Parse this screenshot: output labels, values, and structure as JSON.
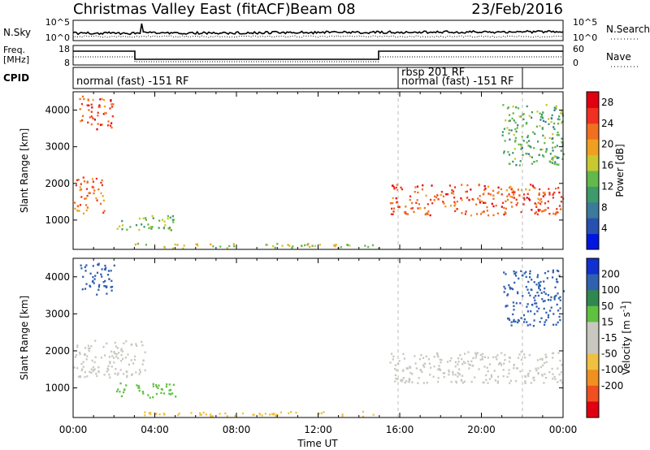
{
  "header": {
    "station": "Christmas Valley East (fitACF)",
    "beam": "Beam 08",
    "date": "23/Feb/2016"
  },
  "panels": {
    "nsky": {
      "label": "N.Sky",
      "ticks": [
        "10^5",
        "10^0"
      ],
      "right_label": "N.Search",
      "right_ticks": [
        "10^5",
        "10^0"
      ]
    },
    "freq": {
      "label": "Freq.",
      "unit": "[MHz]",
      "ticks": [
        "18",
        "8"
      ],
      "right_label": "Nave",
      "right_ticks": [
        "60",
        "0"
      ]
    },
    "cpid": {
      "label": "CPID",
      "modes": [
        {
          "text": "normal (fast) -151 RF",
          "start_h": 0
        },
        {
          "text": "rbsp 201 RF",
          "start_h": 16
        },
        {
          "text": "normal (fast) -151 RF",
          "start_h": 16
        }
      ]
    }
  },
  "time_axis": {
    "label": "Time UT",
    "ticks": [
      "00:00",
      "04:00",
      "08:00",
      "12:00",
      "16:00",
      "20:00",
      "00:00"
    ]
  },
  "chart_data": [
    {
      "type": "heatmap",
      "panel": "power",
      "xlabel": "Time UT",
      "ylabel": "Slant Range [km]",
      "xlim": [
        0,
        24
      ],
      "ylim": [
        200,
        4500
      ],
      "yticks": [
        "1000",
        "2000",
        "3000",
        "4000"
      ],
      "colorbar": {
        "label": "Power [dB]",
        "ticks": [
          "28",
          "24",
          "20",
          "16",
          "12",
          "8",
          "4"
        ],
        "colors": [
          "#0016e0",
          "#2850b0",
          "#3b7a9a",
          "#3e9a6a",
          "#62b84a",
          "#c8c830",
          "#f0a020",
          "#f07020",
          "#f03020",
          "#e00010"
        ]
      },
      "mode_change_times_h": [
        16,
        21.75
      ],
      "features": [
        {
          "name": "early high-range patch",
          "t": [
            0.3,
            2.0
          ],
          "range_km": [
            3500,
            4400
          ],
          "value": 24
        },
        {
          "name": "early mid-range streak",
          "t": [
            0.0,
            1.5
          ],
          "range_km": [
            1200,
            2200
          ],
          "value": 22
        },
        {
          "name": "morning echo",
          "t": [
            2.0,
            5.0
          ],
          "range_km": [
            750,
            1150
          ],
          "value": 14
        },
        {
          "name": "near ground scatter",
          "t": [
            3.0,
            15.0
          ],
          "range_km": [
            250,
            380
          ],
          "value": 16
        },
        {
          "name": "evening band",
          "t": [
            15.5,
            24.0
          ],
          "range_km": [
            1150,
            2000
          ],
          "value": 24
        },
        {
          "name": "late high-range echo",
          "t": [
            21.0,
            24.0
          ],
          "range_km": [
            2500,
            4200
          ],
          "value": 12
        }
      ]
    },
    {
      "type": "heatmap",
      "panel": "velocity",
      "xlabel": "Time UT",
      "ylabel": "Slant Range [km]",
      "xlim": [
        0,
        24
      ],
      "ylim": [
        200,
        4500
      ],
      "yticks": [
        "1000",
        "2000",
        "3000",
        "4000"
      ],
      "colorbar": {
        "label": "Velocity [m s^-1]",
        "ticks": [
          "200",
          "100",
          "50",
          "15",
          "-15",
          "-50",
          "-100",
          "-200"
        ],
        "colors": [
          "#1030d0",
          "#3060b0",
          "#308850",
          "#60c040",
          "#c8c8c0",
          "#c8c8c0",
          "#f0c040",
          "#f09020",
          "#f05020",
          "#e00010"
        ]
      },
      "mode_change_times_h": [
        16,
        21.75
      ],
      "features": [
        {
          "name": "early high-range patch",
          "t": [
            0.3,
            2.0
          ],
          "range_km": [
            3500,
            4400
          ],
          "value": 150
        },
        {
          "name": "early ground scatter",
          "t": [
            0.0,
            3.5
          ],
          "range_km": [
            1300,
            2300
          ],
          "value": 0
        },
        {
          "name": "morning echo",
          "t": [
            2.0,
            5.0
          ],
          "range_km": [
            750,
            1150
          ],
          "value": 40
        },
        {
          "name": "near ground scatter",
          "t": [
            3.0,
            15.0
          ],
          "range_km": [
            250,
            380
          ],
          "value": -40
        },
        {
          "name": "evening ground scatter",
          "t": [
            15.5,
            24.0
          ],
          "range_km": [
            1150,
            2000
          ],
          "value": 0
        },
        {
          "name": "late high-range echo",
          "t": [
            21.0,
            24.0
          ],
          "range_km": [
            2700,
            4200
          ],
          "value": 150
        }
      ]
    }
  ]
}
